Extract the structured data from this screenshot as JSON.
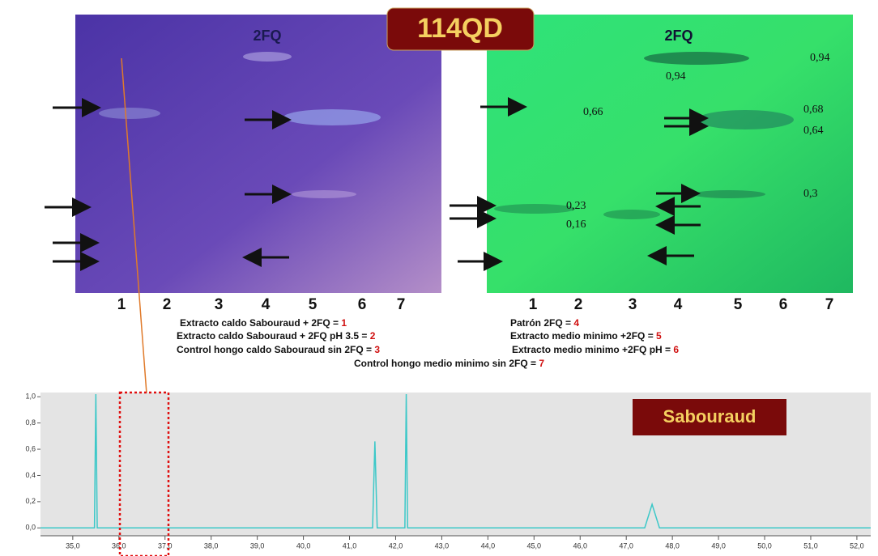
{
  "title": "114QD",
  "plates": [
    {
      "label": "2FQ",
      "lanes": [
        "1",
        "2",
        "3",
        "4",
        "5",
        "6",
        "7"
      ],
      "rf_labels": []
    },
    {
      "label": "2FQ",
      "lanes": [
        "1",
        "2",
        "3",
        "4",
        "5",
        "6",
        "7"
      ],
      "rf_labels": [
        "0,94",
        "0,94",
        "0,66",
        "0,68",
        "0,64",
        "0,3",
        "0,23",
        "0,16"
      ]
    }
  ],
  "legend": [
    {
      "text": "Extracto caldo Sabouraud + 2FQ  = ",
      "key": "1"
    },
    {
      "text": "Extracto caldo Sabouraud + 2FQ pH 3.5  = ",
      "key": "2"
    },
    {
      "text": "Control hongo caldo Sabouraud  sin 2FQ = ",
      "key": "3"
    },
    {
      "text": "Patrón 2FQ = ",
      "key": "4"
    },
    {
      "text": "Extracto medio minimo +2FQ = ",
      "key": "5"
    },
    {
      "text": "Extracto medio minimo +2FQ pH = ",
      "key": "6"
    },
    {
      "text": "Control hongo medio minimo sin 2FQ = ",
      "key": "7"
    }
  ],
  "chart_data": {
    "type": "line",
    "annotation": "Sabouraud",
    "color": "#3cc8c8",
    "x": [
      34.3,
      35.47,
      35.5,
      35.53,
      41.5,
      41.55,
      41.6,
      42.2,
      42.23,
      42.26,
      47.4,
      47.56,
      47.72,
      52.3
    ],
    "values": [
      0,
      0,
      1.02,
      0,
      0,
      0.66,
      0,
      0,
      1.02,
      0,
      0,
      0.18,
      0,
      0
    ],
    "xlim": [
      34.3,
      52.3
    ],
    "ylim": [
      -0.06,
      1.02
    ],
    "xticks": [
      {
        "value": 35,
        "label": "35,0"
      },
      {
        "value": 36,
        "label": "36,0"
      },
      {
        "value": 37,
        "label": "37,0"
      },
      {
        "value": 38,
        "label": "38,0"
      },
      {
        "value": 39,
        "label": "39,0"
      },
      {
        "value": 40,
        "label": "40,0"
      },
      {
        "value": 41,
        "label": "41,0"
      },
      {
        "value": 42,
        "label": "42,0"
      },
      {
        "value": 43,
        "label": "43,0"
      },
      {
        "value": 44,
        "label": "44,0"
      },
      {
        "value": 45,
        "label": "45,0"
      },
      {
        "value": 46,
        "label": "46,0"
      },
      {
        "value": 47,
        "label": "47,0"
      },
      {
        "value": 48,
        "label": "48,0"
      },
      {
        "value": 49,
        "label": "49,0"
      },
      {
        "value": 50,
        "label": "50,0"
      },
      {
        "value": 51,
        "label": "51,0"
      },
      {
        "value": 52,
        "label": "52,0"
      }
    ],
    "yticks": [
      {
        "value": 0,
        "label": "0,0"
      },
      {
        "value": 0.2,
        "label": "0,2"
      },
      {
        "value": 0.4,
        "label": "0,4"
      },
      {
        "value": 0.6,
        "label": "0,6"
      },
      {
        "value": 0.8,
        "label": "0,8"
      },
      {
        "value": 1,
        "label": "1,0"
      }
    ]
  }
}
